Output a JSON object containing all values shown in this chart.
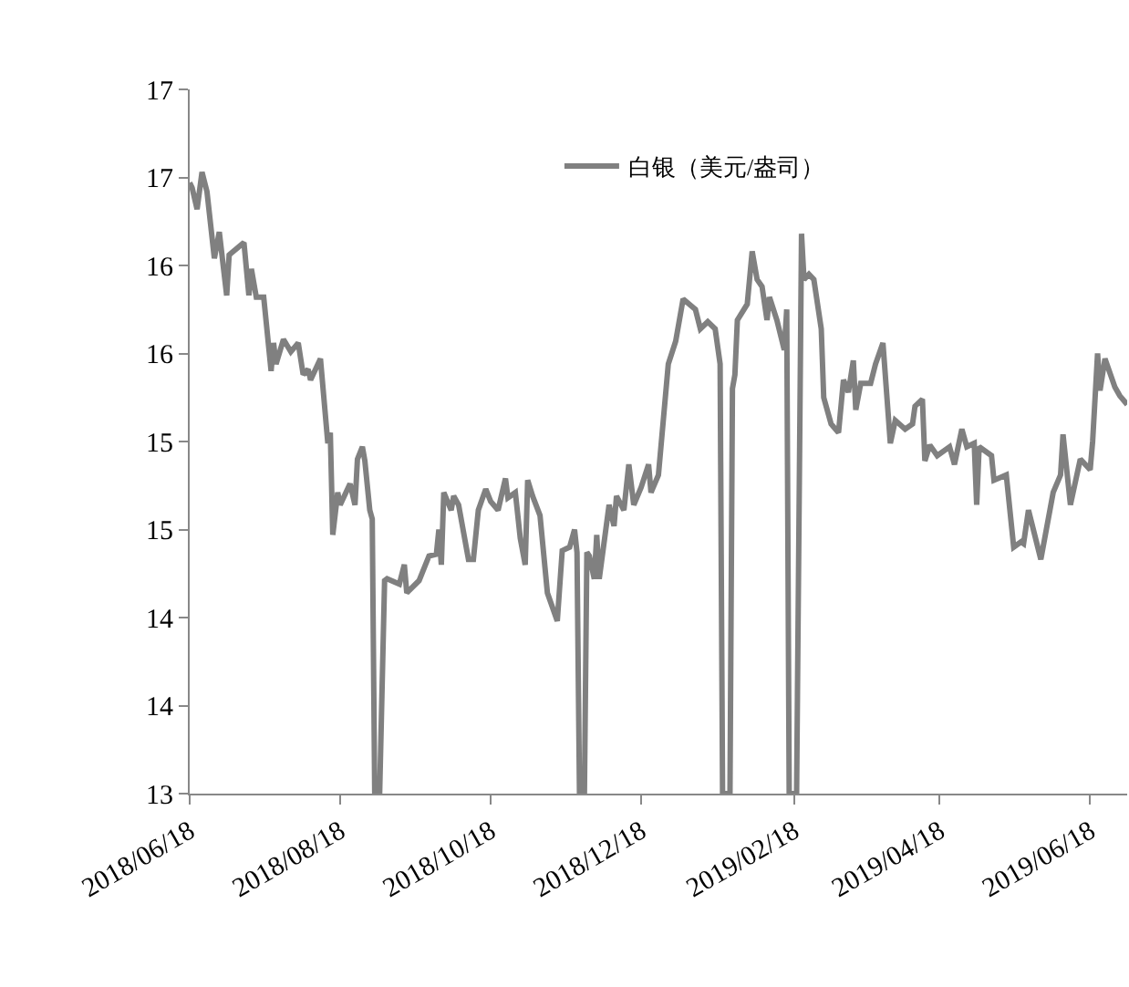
{
  "chart_data": {
    "type": "line",
    "x": [
      "2018-06-18",
      "2018-06-19",
      "2018-06-21",
      "2018-06-23",
      "2018-06-25",
      "2018-06-28",
      "2018-06-30",
      "2018-07-03",
      "2018-07-04",
      "2018-07-10",
      "2018-07-12",
      "2018-07-13",
      "2018-07-15",
      "2018-07-18",
      "2018-07-21",
      "2018-07-22",
      "2018-07-23",
      "2018-07-26",
      "2018-07-29",
      "2018-08-01",
      "2018-08-03",
      "2018-08-05",
      "2018-08-06",
      "2018-08-10",
      "2018-08-13",
      "2018-08-14",
      "2018-08-15",
      "2018-08-17",
      "2018-08-18",
      "2018-08-22",
      "2018-08-24",
      "2018-08-25",
      "2018-08-27",
      "2018-08-28",
      "2018-08-30",
      "2018-08-31",
      "2018-09-01",
      "2018-09-03",
      "2018-09-05",
      "2018-09-06",
      "2018-09-11",
      "2018-09-13",
      "2018-09-14",
      "2018-09-19",
      "2018-09-23",
      "2018-09-26",
      "2018-09-27",
      "2018-09-28",
      "2018-09-29",
      "2018-10-02",
      "2018-10-03",
      "2018-10-05",
      "2018-10-09",
      "2018-10-11",
      "2018-10-13",
      "2018-10-16",
      "2018-10-18",
      "2018-10-21",
      "2018-10-24",
      "2018-10-25",
      "2018-10-28",
      "2018-10-30",
      "2018-11-01",
      "2018-11-02",
      "2018-11-04",
      "2018-11-07",
      "2018-11-10",
      "2018-11-14",
      "2018-11-16",
      "2018-11-19",
      "2018-11-21",
      "2018-11-22",
      "2018-11-23",
      "2018-11-25",
      "2018-11-26",
      "2018-11-27",
      "2018-11-29",
      "2018-11-30",
      "2018-12-01",
      "2018-12-05",
      "2018-12-07",
      "2018-12-08",
      "2018-12-11",
      "2018-12-13",
      "2018-12-15",
      "2018-12-18",
      "2018-12-21",
      "2018-12-22",
      "2018-12-25",
      "2018-12-29",
      "2019-01-01",
      "2019-01-04",
      "2019-01-09",
      "2019-01-11",
      "2019-01-14",
      "2019-01-17",
      "2019-01-19",
      "2019-01-20",
      "2019-01-23",
      "2019-01-24",
      "2019-01-25",
      "2019-01-26",
      "2019-01-30",
      "2019-02-01",
      "2019-02-03",
      "2019-02-05",
      "2019-02-07",
      "2019-02-08",
      "2019-02-11",
      "2019-02-14",
      "2019-02-15",
      "2019-02-16",
      "2019-02-19",
      "2019-02-21",
      "2019-02-22",
      "2019-02-24",
      "2019-02-26",
      "2019-03-01",
      "2019-03-02",
      "2019-03-05",
      "2019-03-08",
      "2019-03-10",
      "2019-03-12",
      "2019-03-14",
      "2019-03-15",
      "2019-03-17",
      "2019-03-21",
      "2019-03-23",
      "2019-03-26",
      "2019-03-29",
      "2019-03-31",
      "2019-04-04",
      "2019-04-07",
      "2019-04-08",
      "2019-04-11",
      "2019-04-12",
      "2019-04-14",
      "2019-04-17",
      "2019-04-22",
      "2019-04-24",
      "2019-04-27",
      "2019-04-29",
      "2019-05-02",
      "2019-05-03",
      "2019-05-04",
      "2019-05-09",
      "2019-05-10",
      "2019-05-15",
      "2019-05-18",
      "2019-05-21",
      "2019-05-22",
      "2019-05-24",
      "2019-05-29",
      "2019-06-03",
      "2019-06-06",
      "2019-06-07",
      "2019-06-10",
      "2019-06-14",
      "2019-06-18",
      "2019-06-19",
      "2019-06-21",
      "2019-06-22",
      "2019-06-24",
      "2019-06-28",
      "2019-06-30",
      "2019-07-03"
    ],
    "series": [
      {
        "name": "白银（美元/盎司）",
        "color": "#808080",
        "values": [
          16.47,
          16.44,
          16.32,
          16.53,
          16.42,
          16.04,
          16.19,
          15.83,
          16.06,
          16.13,
          15.83,
          15.98,
          15.82,
          15.82,
          15.4,
          15.56,
          15.44,
          15.58,
          15.51,
          15.56,
          15.38,
          15.41,
          15.35,
          15.47,
          14.99,
          15.05,
          14.47,
          14.71,
          14.64,
          14.76,
          14.64,
          14.9,
          14.97,
          14.89,
          14.61,
          14.56,
          13,
          13,
          14.21,
          14.22,
          14.19,
          14.3,
          14.14,
          14.21,
          14.35,
          14.36,
          14.5,
          14.3,
          14.71,
          14.61,
          14.69,
          14.64,
          14.33,
          14.33,
          14.61,
          14.73,
          14.66,
          14.61,
          14.79,
          14.68,
          14.71,
          14.45,
          14.3,
          14.78,
          14.69,
          14.58,
          14.14,
          13.98,
          14.38,
          14.4,
          14.5,
          14.37,
          13,
          13,
          14.37,
          14.35,
          14.22,
          14.47,
          14.22,
          14.64,
          14.52,
          14.69,
          14.61,
          14.87,
          14.64,
          14.74,
          14.87,
          14.71,
          14.81,
          15.44,
          15.57,
          15.81,
          15.75,
          15.64,
          15.68,
          15.64,
          15.44,
          13,
          13,
          15.3,
          15.38,
          15.69,
          15.78,
          16.08,
          15.92,
          15.88,
          15.69,
          15.82,
          15.69,
          15.52,
          15.75,
          13,
          13,
          16.18,
          15.92,
          15.95,
          15.92,
          15.64,
          15.25,
          15.1,
          15.05,
          15.35,
          15.28,
          15.46,
          15.18,
          15.33,
          15.33,
          15.44,
          15.56,
          14.99,
          15.12,
          15.07,
          15.1,
          15.2,
          15.24,
          14.89,
          14.98,
          14.92,
          14.97,
          14.87,
          15.07,
          14.97,
          14.99,
          14.64,
          14.97,
          14.92,
          14.78,
          14.81,
          14.4,
          14.43,
          14.42,
          14.61,
          14.33,
          14.71,
          14.81,
          15.04,
          14.64,
          14.9,
          14.84,
          15.0,
          15.5,
          15.29,
          15.47,
          15.31,
          15.26,
          15.21
        ]
      }
    ],
    "xlim": [
      "2018-06-18",
      "2019-07-03"
    ],
    "xticks": [
      {
        "value": "2018-06-18",
        "label": "2018/06/18"
      },
      {
        "value": "2018-08-18",
        "label": "2018/08/18"
      },
      {
        "value": "2018-10-18",
        "label": "2018/10/18"
      },
      {
        "value": "2018-12-18",
        "label": "2018/12/18"
      },
      {
        "value": "2019-02-18",
        "label": "2019/02/18"
      },
      {
        "value": "2019-04-18",
        "label": "2019/04/18"
      },
      {
        "value": "2019-06-18",
        "label": "2019/06/18"
      }
    ],
    "ylim": [
      13,
      17
    ],
    "yticks": [
      13,
      {
        "value": 13.5,
        "label": "14"
      },
      14,
      {
        "value": 14.5,
        "label": "15"
      },
      15,
      {
        "value": 15.5,
        "label": "16"
      },
      16,
      {
        "value": 16.5,
        "label": "17"
      },
      17
    ],
    "legend": "top right",
    "marker": "none",
    "line_style": "solid"
  }
}
